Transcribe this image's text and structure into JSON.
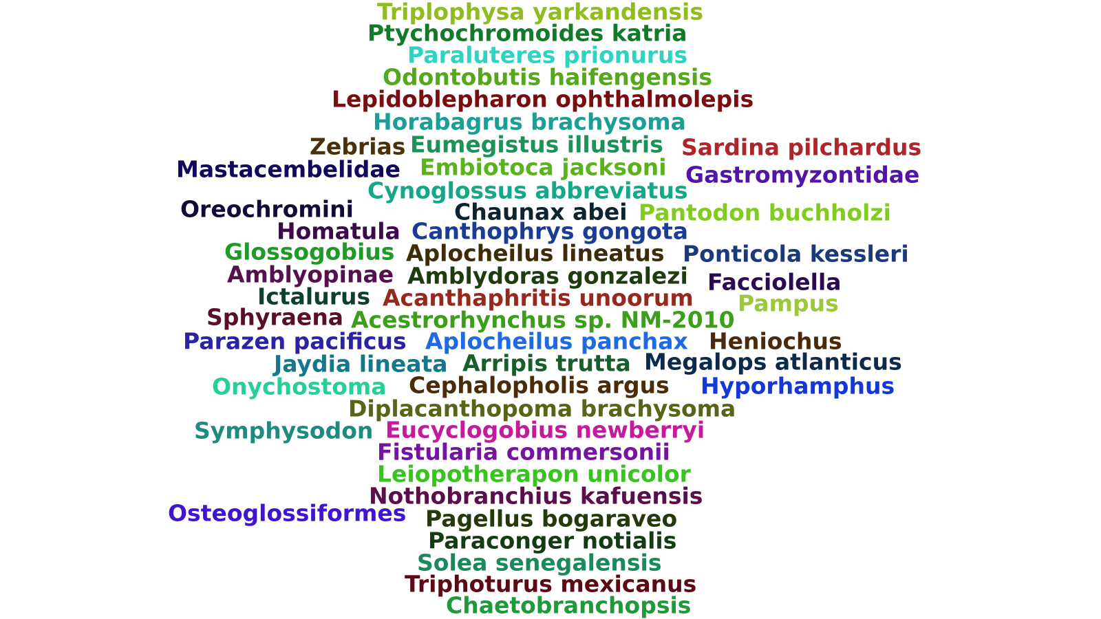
{
  "words": [
    {
      "text": "Triplophysa yarkandensis",
      "color": "#8fbc1f"
    },
    {
      "text": "Ptychochromoides katria",
      "color": "#137a2a"
    },
    {
      "text": "Paraluteres prionurus",
      "color": "#2ed4c0"
    },
    {
      "text": "Odontobutis haifengensis",
      "color": "#55a81c"
    },
    {
      "text": "Lepidoblepharon ophthalmolepis",
      "color": "#7a0d10"
    },
    {
      "text": "Horabagrus brachysoma",
      "color": "#1a9e96"
    },
    {
      "text": "Zebrias",
      "color": "#4a3208"
    },
    {
      "text": "Eumegistus illustris",
      "color": "#1d9256"
    },
    {
      "text": "Sardina pilchardus",
      "color": "#b0242c"
    },
    {
      "text": "Mastacembelidae",
      "color": "#12085e"
    },
    {
      "text": "Embiotoca jacksoni",
      "color": "#5ab21c"
    },
    {
      "text": "Gastromyzontidae",
      "color": "#5314a8"
    },
    {
      "text": "Cynoglossus abbreviatus",
      "color": "#14a888"
    },
    {
      "text": "Oreochromini",
      "color": "#140a3a"
    },
    {
      "text": "Chaunax abei",
      "color": "#0d2430"
    },
    {
      "text": "Pantodon buchholzi",
      "color": "#82cc20"
    },
    {
      "text": "Homatula",
      "color": "#3c0a4a"
    },
    {
      "text": "Canthophrys gongota",
      "color": "#1a3c94"
    },
    {
      "text": "Glossogobius",
      "color": "#1e9a26"
    },
    {
      "text": "Aplocheilus lineatus",
      "color": "#3c2c08"
    },
    {
      "text": "Ponticola kessleri",
      "color": "#1a3a7a"
    },
    {
      "text": "Amblyopinae",
      "color": "#55104e"
    },
    {
      "text": "Amblydoras gonzalezi",
      "color": "#1e3c10"
    },
    {
      "text": "Facciolella",
      "color": "#2a0a52"
    },
    {
      "text": "Ictalurus",
      "color": "#0d4030"
    },
    {
      "text": "Acanthaphritis unoorum",
      "color": "#96281e"
    },
    {
      "text": "Pampus",
      "color": "#9cc83c"
    },
    {
      "text": "Sphyraena",
      "color": "#5a0e2c"
    },
    {
      "text": "Acestrorhynchus sp. NM-2010",
      "color": "#3c9e1a"
    },
    {
      "text": "Parazen pacificus",
      "color": "#2a24a4"
    },
    {
      "text": "Aplocheilus panchax",
      "color": "#1e6ae2"
    },
    {
      "text": "Heniochus",
      "color": "#4a2a0a"
    },
    {
      "text": "Jaydia lineata",
      "color": "#14788a"
    },
    {
      "text": "Arripis trutta",
      "color": "#185e2c"
    },
    {
      "text": "Megalops atlanticus",
      "color": "#0d2a4a"
    },
    {
      "text": "Onychostoma",
      "color": "#24d096"
    },
    {
      "text": "Cephalopholis argus",
      "color": "#4a2c08"
    },
    {
      "text": "Hyporhamphus",
      "color": "#1438d8"
    },
    {
      "text": "Diplacanthopoma brachysoma",
      "color": "#5a6416"
    },
    {
      "text": "Symphysodon",
      "color": "#1e8a80"
    },
    {
      "text": "Eucyclogobius newberryi",
      "color": "#c41a9c"
    },
    {
      "text": "Fistularia commersonii",
      "color": "#7414a0"
    },
    {
      "text": "Leiopotherapon unicolor",
      "color": "#38c41e"
    },
    {
      "text": "Nothobranchius kafuensis",
      "color": "#5a0e4a"
    },
    {
      "text": "Osteoglossiformes",
      "color": "#4014d0"
    },
    {
      "text": "Pagellus bogaraveo",
      "color": "#243a0a"
    },
    {
      "text": "Paraconger notialis",
      "color": "#143c14"
    },
    {
      "text": "Solea senegalensis",
      "color": "#1a8a5a"
    },
    {
      "text": "Triphoturus mexicanus",
      "color": "#5c0a14"
    },
    {
      "text": "Chaetobranchopsis",
      "color": "#1e9a3a"
    }
  ]
}
